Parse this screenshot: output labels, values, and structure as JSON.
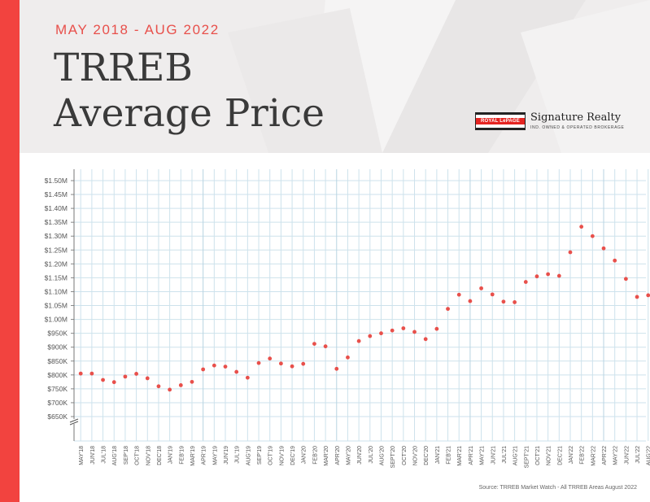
{
  "header": {
    "subtitle": "MAY 2018 - AUG 2022",
    "title_line1": "TRREB",
    "title_line2": "Average Price"
  },
  "logo": {
    "wordmark": "ROYAL LePAGE",
    "name": "Signature Realty",
    "tagline": "IND. OWNED & OPERATED BROKERAGE"
  },
  "colors": {
    "accent": "#f2433f",
    "point": "#e8504b",
    "grid": "#cde2ec",
    "grid_major": "#b8d4e2",
    "axis_text": "#555555"
  },
  "source": "Source: TRREB Market Watch - All TRREB Areas August 2022",
  "chart_data": {
    "type": "scatter",
    "x": [
      "MAY'18",
      "JUN'18",
      "JUL'18",
      "AUG'18",
      "SEP'18",
      "OCT'18",
      "NOV'18",
      "DEC'18",
      "JAN'19",
      "FEB'19",
      "MAR'19",
      "APR'19",
      "MAY'19",
      "JUN'19",
      "JUL'19",
      "AUG'19",
      "SEP'19",
      "OCT'19",
      "NOV'19",
      "DEC'19",
      "JAN'20",
      "FEB'20",
      "MAR'20",
      "APR'20",
      "MAY'20",
      "JUN'20",
      "JUL'20",
      "AUG'20",
      "SEPT'20",
      "OCT'20",
      "NOV'20",
      "DEC'20",
      "JAN'21",
      "FEB'21",
      "MAR'21",
      "APR'21",
      "MAY'21",
      "JUN'21",
      "JUL'21",
      "AUG'21",
      "SEPT'21",
      "OCT'21",
      "NOV'21",
      "DEC'21",
      "JAN'22",
      "FEB'22",
      "MAR'22",
      "APR'22",
      "MAY'22",
      "JUN'22",
      "JUL'22",
      "AUG'22"
    ],
    "y": [
      805,
      805,
      782,
      774,
      794,
      804,
      788,
      759,
      747,
      763,
      775,
      820,
      834,
      830,
      811,
      790,
      843,
      859,
      841,
      831,
      840,
      912,
      903,
      822,
      863,
      922,
      940,
      950,
      960,
      968,
      955,
      929,
      966,
      1038,
      1089,
      1066,
      1112,
      1090,
      1064,
      1062,
      1135,
      1155,
      1163,
      1157,
      1242,
      1334,
      1300,
      1256,
      1212,
      1146,
      1081,
      1087
    ],
    "y_ticks": [
      "$650K",
      "$700K",
      "$750K",
      "$800K",
      "$850K",
      "$900K",
      "$950K",
      "$1.00M",
      "$1.05M",
      "$1.10M",
      "$1.15M",
      "$1.20M",
      "$1.25M",
      "$1.30M",
      "$1.35M",
      "$1.40M",
      "$1.45M",
      "$1.50M"
    ],
    "ylim": [
      650,
      1500
    ],
    "axis_break": true,
    "xlabel": "",
    "ylabel": "",
    "grid": true
  }
}
